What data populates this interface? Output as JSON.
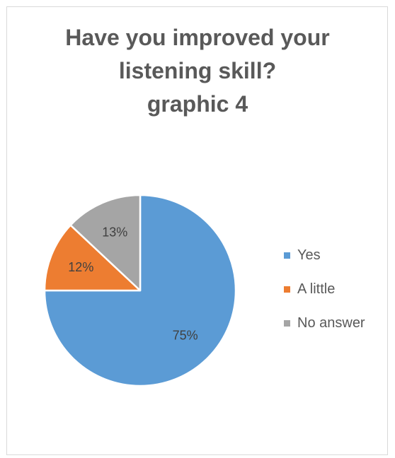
{
  "chart_data": {
    "type": "pie",
    "title_lines": [
      "Have you improved your",
      "listening skill?",
      "graphic 4"
    ],
    "categories": [
      "Yes",
      "A little",
      "No answer"
    ],
    "values": [
      75,
      12,
      13
    ],
    "labels": [
      "75%",
      "12%",
      "13%"
    ],
    "colors": [
      "#5b9bd5",
      "#ed7d31",
      "#a5a5a5"
    ],
    "legend": "right",
    "start_angle_deg": 0,
    "direction": "clockwise"
  }
}
